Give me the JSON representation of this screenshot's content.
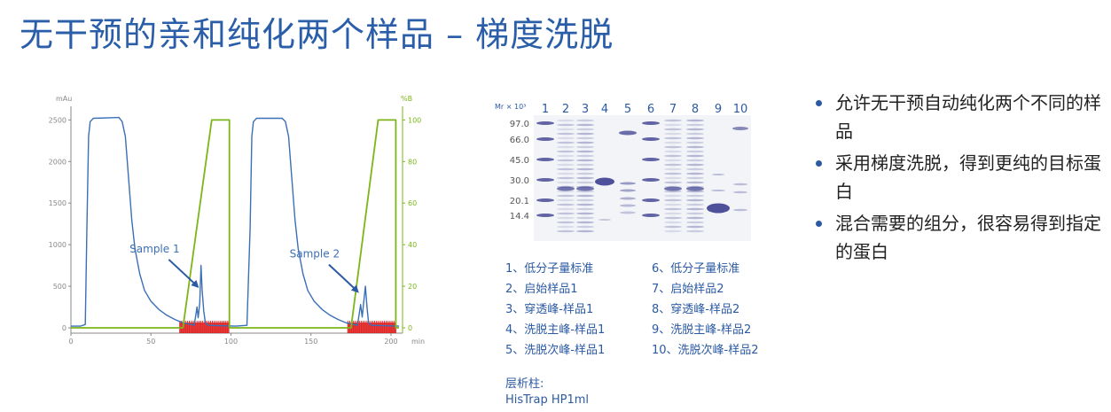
{
  "title": "无干预的亲和纯化两个样品 – 梯度洗脱",
  "chromatogram": {
    "chart_data": {
      "type": "line",
      "ylabel_left": "mAu",
      "ylabel_right": "%B",
      "xlabel": "min",
      "xlim": [
        0,
        205
      ],
      "ylim_left": [
        0,
        2600
      ],
      "ylim_right": [
        0,
        104
      ],
      "x_ticks": [
        0,
        50,
        100,
        150,
        200
      ],
      "y_left_ticks": [
        0,
        500,
        1000,
        1500,
        2000,
        2500
      ],
      "y_right_ticks": [
        0,
        20,
        40,
        60,
        80,
        100
      ],
      "annotations": [
        {
          "label": "Sample 1",
          "x": 80,
          "y": 480
        },
        {
          "label": "Sample 2",
          "x": 180,
          "y": 420
        }
      ],
      "series": [
        {
          "axis": "left",
          "color": "#3b6fb6",
          "values": [
            [
              0,
              20
            ],
            [
              6,
              20
            ],
            [
              9,
              40
            ],
            [
              10,
              1200
            ],
            [
              11,
              2300
            ],
            [
              12,
              2480
            ],
            [
              14,
              2520
            ],
            [
              30,
              2530
            ],
            [
              32,
              2480
            ],
            [
              34,
              2300
            ],
            [
              36,
              1800
            ],
            [
              38,
              1300
            ],
            [
              40,
              950
            ],
            [
              43,
              650
            ],
            [
              46,
              450
            ],
            [
              50,
              320
            ],
            [
              55,
              220
            ],
            [
              60,
              150
            ],
            [
              65,
              100
            ],
            [
              70,
              60
            ],
            [
              75,
              40
            ],
            [
              77,
              30
            ],
            [
              78,
              150
            ],
            [
              78.8,
              250
            ],
            [
              79.5,
              120
            ],
            [
              80.5,
              300
            ],
            [
              81.3,
              750
            ],
            [
              82,
              450
            ],
            [
              83,
              200
            ],
            [
              84,
              60
            ],
            [
              86,
              30
            ],
            [
              103,
              20
            ],
            [
              110,
              30
            ],
            [
              112,
              1200
            ],
            [
              113,
              2300
            ],
            [
              114,
              2480
            ],
            [
              116,
              2520
            ],
            [
              132,
              2520
            ],
            [
              134,
              2480
            ],
            [
              136,
              2300
            ],
            [
              138,
              1800
            ],
            [
              140,
              1300
            ],
            [
              142,
              950
            ],
            [
              145,
              650
            ],
            [
              148,
              450
            ],
            [
              152,
              320
            ],
            [
              157,
              220
            ],
            [
              162,
              150
            ],
            [
              167,
              100
            ],
            [
              172,
              60
            ],
            [
              177,
              40
            ],
            [
              179,
              30
            ],
            [
              180,
              150
            ],
            [
              181,
              280
            ],
            [
              182,
              130
            ],
            [
              183,
              320
            ],
            [
              184,
              500
            ],
            [
              185,
              250
            ],
            [
              186,
              60
            ],
            [
              188,
              30
            ],
            [
              205,
              20
            ]
          ]
        },
        {
          "axis": "right",
          "color": "#7cb518",
          "values": [
            [
              0,
              0
            ],
            [
              70,
              0
            ],
            [
              88,
              100
            ],
            [
              99,
              100
            ],
            [
              99,
              0
            ],
            [
              175,
              0
            ],
            [
              192,
              100
            ],
            [
              203,
              100
            ],
            [
              203,
              0
            ],
            [
              205,
              0
            ]
          ]
        }
      ],
      "fraction_marks": {
        "color": "#e02020",
        "ranges": [
          [
            68,
            99
          ],
          [
            173,
            203
          ]
        ]
      }
    }
  },
  "gel": {
    "mr_label": "Mr × 10³",
    "lanes": [
      "1",
      "2",
      "3",
      "4",
      "5",
      "6",
      "7",
      "8",
      "9",
      "10"
    ],
    "markers": [
      "97.0",
      "66.0",
      "45.0",
      "30.0",
      "20.1",
      "14.4"
    ]
  },
  "gel_legend_left": [
    "1、低分子量标准",
    "2、启始样品1",
    "3、穿透峰-样品1",
    "4、洗脱主峰-样品1",
    "5、洗脱次峰-样品1"
  ],
  "gel_legend_right": [
    "6、低分子量标准",
    "7、启始样品2",
    "8、穿透峰-样品2",
    "9、洗脱主峰-样品2",
    "10、洗脱次峰-样品2"
  ],
  "column_title": "层析柱:",
  "column_value": "HisTrap HP1ml",
  "bullets": [
    "允许无干预自动纯化两个不同的样品",
    "采用梯度洗脱，得到更纯的目标蛋白",
    "混合需要的组分，很容易得到指定的蛋白"
  ],
  "colors": {
    "title": "#2a5ea8",
    "text_blue": "#2b5aa3",
    "uv_line": "#3b6fb6",
    "gradient_line": "#7cb518",
    "fractions": "#e02020"
  }
}
